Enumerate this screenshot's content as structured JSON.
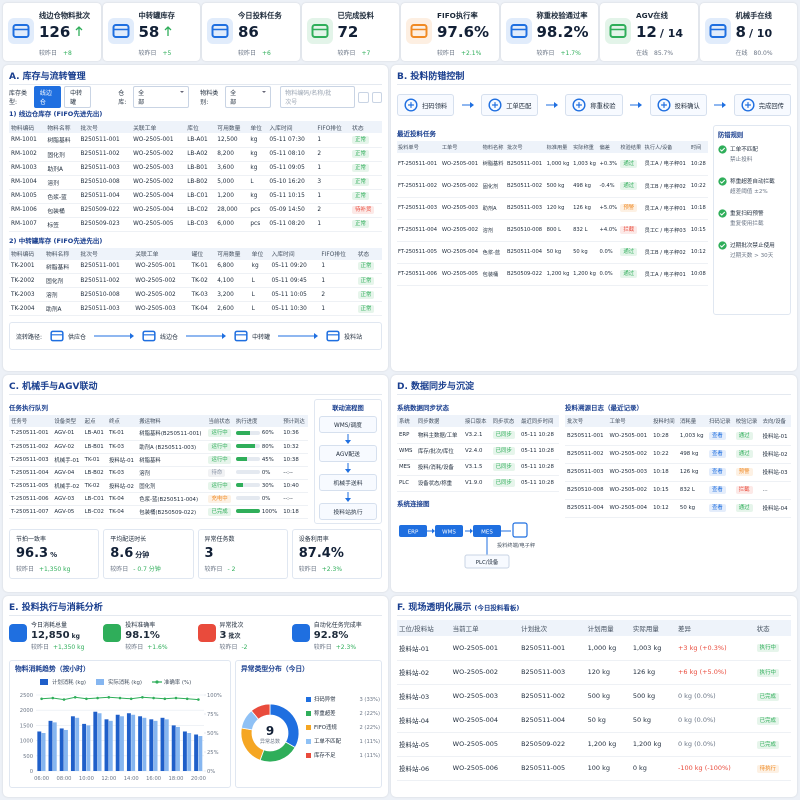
{
  "kpis": [
    {
      "title": "线边仓物料批次",
      "value": "126",
      "sub_label": "较昨日",
      "sub_value": "+8",
      "icon_color": "#1f6fe0",
      "arrow_color": "#2fae5a",
      "sub_color": "#2fae5a"
    },
    {
      "title": "中转罐库存",
      "value": "58",
      "sub_label": "较昨日",
      "sub_value": "+5",
      "icon_color": "#1f6fe0",
      "arrow_color": "#2fae5a",
      "sub_color": "#2fae5a"
    },
    {
      "title": "今日投料任务",
      "value": "86",
      "sub_label": "较昨日",
      "sub_value": "+6",
      "icon_color": "#1f6fe0",
      "sub_color": "#2fae5a"
    },
    {
      "title": "已完成投料",
      "value": "72",
      "sub_label": "较昨日",
      "sub_value": "+7",
      "icon_color": "#2fae5a",
      "sub_color": "#2fae5a"
    },
    {
      "title": "FIFO执行率",
      "value": "97.6%",
      "sub_label": "较昨日",
      "sub_value": "+2.1%",
      "icon_color": "#f08a24",
      "sub_color": "#2fae5a"
    },
    {
      "title": "称重校验通过率",
      "value": "98.2%",
      "sub_label": "较昨日",
      "sub_value": "+1.7%",
      "icon_color": "#1f6fe0",
      "sub_color": "#2fae5a"
    },
    {
      "title": "AGV在线",
      "value": "12",
      "total": "/ 14",
      "sub_label": "在线",
      "sub_value": "85.7%",
      "icon_color": "#2fae5a",
      "sub_color": "#6b7686"
    },
    {
      "title": "机械手在线",
      "value": "8",
      "total": "/ 10",
      "sub_label": "在线",
      "sub_value": "80.0%",
      "icon_color": "#1f6fe0",
      "sub_color": "#6b7686"
    }
  ],
  "section_a": {
    "title": "A. 库存与流转管理",
    "filters": {
      "type_label": "库存类型:",
      "type_options": [
        "线边仓",
        "中转罐"
      ],
      "warehouse_label": "仓库:",
      "warehouse_value": "全部",
      "category_label": "物料类别:",
      "category_value": "全部",
      "search_placeholder": "物料编码/名称/批次号"
    },
    "line_side": {
      "title": "1) 线边仓库存 (FIFO先进先出)",
      "headers": [
        "物料编码",
        "物料名称",
        "批次号",
        "关联工单",
        "库位",
        "可用数量",
        "单位",
        "入库时间",
        "FIFO排位",
        "状态"
      ],
      "rows": [
        [
          "RM-1001",
          "树脂基料",
          "B250511-001",
          "WO-2505-001",
          "LB-A01",
          "12,500",
          "kg",
          "05-11 07:30",
          "1",
          {
            "text": "正常",
            "color": "#2fae5a"
          }
        ],
        [
          "RM-1002",
          "固化剂",
          "B250511-002",
          "WO-2505-002",
          "LB-A02",
          "8,200",
          "kg",
          "05-11 08:10",
          "2",
          {
            "text": "正常",
            "color": "#2fae5a"
          }
        ],
        [
          "RM-1003",
          "助剂A",
          "B250511-003",
          "WO-2505-003",
          "LB-B01",
          "3,600",
          "kg",
          "05-11 09:05",
          "1",
          {
            "text": "正常",
            "color": "#2fae5a"
          }
        ],
        [
          "RM-1004",
          "溶剂",
          "B250510-008",
          "WO-2505-002",
          "LB-B02",
          "5,000",
          "L",
          "05-10 16:20",
          "3",
          {
            "text": "正常",
            "color": "#2fae5a"
          }
        ],
        [
          "RM-1005",
          "色浆-蓝",
          "B250511-004",
          "WO-2505-004",
          "LB-C01",
          "1,200",
          "kg",
          "05-11 10:15",
          "1",
          {
            "text": "正常",
            "color": "#2fae5a"
          }
        ],
        [
          "RM-1006",
          "包装桶",
          "B250509-022",
          "WO-2505-004",
          "LB-C02",
          "28,000",
          "pcs",
          "05-09 14:50",
          "2",
          {
            "text": "待补货",
            "color": "#e94b3c"
          }
        ],
        [
          "RM-1007",
          "标签",
          "B250509-023",
          "WO-2505-005",
          "LB-C03",
          "6,000",
          "pcs",
          "05-11 08:20",
          "1",
          {
            "text": "正常",
            "color": "#2fae5a"
          }
        ]
      ]
    },
    "tank": {
      "title": "2) 中转罐库存 (FIFO先进先出)",
      "headers": [
        "物料编码",
        "物料名称",
        "批次号",
        "关联工单",
        "罐位",
        "可用数量",
        "单位",
        "入库时间",
        "FIFO排位",
        "状态"
      ],
      "rows": [
        [
          "TK-2001",
          "树脂基料",
          "B250511-001",
          "WO-2505-001",
          "TK-01",
          "6,800",
          "kg",
          "05-11 09:20",
          "1",
          {
            "text": "正常",
            "color": "#2fae5a"
          }
        ],
        [
          "TK-2002",
          "固化剂",
          "B250511-002",
          "WO-2505-002",
          "TK-02",
          "4,100",
          "L",
          "05-11 09:45",
          "1",
          {
            "text": "正常",
            "color": "#2fae5a"
          }
        ],
        [
          "TK-2003",
          "溶剂",
          "B250510-008",
          "WO-2505-002",
          "TK-03",
          "3,200",
          "L",
          "05-11 10:05",
          "2",
          {
            "text": "正常",
            "color": "#2fae5a"
          }
        ],
        [
          "TK-2004",
          "助剂A",
          "B250511-003",
          "WO-2505-003",
          "TK-04",
          "2,600",
          "L",
          "05-11 10:30",
          "1",
          {
            "text": "正常",
            "color": "#2fae5a"
          }
        ]
      ]
    },
    "flow": {
      "label": "流转路径:",
      "nodes": [
        "供应仓",
        "线边仓",
        "中转罐",
        "投料站"
      ]
    }
  },
  "section_b": {
    "title": "B. 投料防错控制",
    "steps": [
      "扫码领料",
      "工单匹配",
      "称重校验",
      "投料确认",
      "完成回传"
    ],
    "tasks": {
      "title": "最近投料任务",
      "headers": [
        "投料单号",
        "工单号",
        "物料名称",
        "批次号",
        "标准用量",
        "实际称重",
        "偏差",
        "校验结果",
        "执行人/设备",
        "时间"
      ],
      "rows": [
        [
          "FT-250511-001",
          "WO-2505-001",
          "树脂基料",
          "B250511-001",
          "1,000 kg",
          "1,003 kg",
          "+0.3%",
          {
            "text": "通过",
            "color": "#2fae5a"
          },
          "员工A / 电子秤01",
          "10:28"
        ],
        [
          "FT-250511-002",
          "WO-2505-002",
          "固化剂",
          "B250511-002",
          "500 kg",
          "498 kg",
          "-0.4%",
          {
            "text": "通过",
            "color": "#2fae5a"
          },
          "员工B / 电子秤02",
          "10:22"
        ],
        [
          "FT-250511-003",
          "WO-2505-003",
          "助剂A",
          "B250511-003",
          "120 kg",
          "126 kg",
          "+5.0%",
          {
            "text": "预警",
            "color": "#f08a24"
          },
          "员工A / 电子秤01",
          "10:18"
        ],
        [
          "FT-250511-004",
          "WO-2505-002",
          "溶剂",
          "B250510-008",
          "800 L",
          "832 L",
          "+4.0%",
          {
            "text": "拦截",
            "color": "#e94b3c"
          },
          "员工C / 电子秤03",
          "10:15"
        ],
        [
          "FT-250511-005",
          "WO-2505-004",
          "色浆-蓝",
          "B250511-004",
          "50 kg",
          "50 kg",
          "0.0%",
          {
            "text": "通过",
            "color": "#2fae5a"
          },
          "员工B / 电子秤02",
          "10:12"
        ],
        [
          "FT-250511-006",
          "WO-2505-005",
          "包装桶",
          "B250509-022",
          "1,200 kg",
          "1,200 kg",
          "0.0%",
          {
            "text": "通过",
            "color": "#2fae5a"
          },
          "员工A / 电子秤01",
          "10:08"
        ]
      ]
    },
    "rules": {
      "title": "防错规则",
      "items": [
        {
          "title": "工单不匹配",
          "desc": "禁止投料"
        },
        {
          "title": "称重超差自动拦截",
          "desc": "超差阈值 ±2%"
        },
        {
          "title": "重复扫码预警",
          "desc": "重复使用拦截"
        },
        {
          "title": "过期批次禁止使用",
          "desc": "过期天数 > 30天"
        }
      ]
    }
  },
  "section_c": {
    "title": "C. 机械手与AGV联动",
    "queue": {
      "title": "任务执行队列",
      "headers": [
        "任务号",
        "设备类型",
        "起点",
        "终点",
        "搬运物料",
        "当前状态",
        "执行进度",
        "预计到达"
      ],
      "rows": [
        [
          "T-250511-001",
          "AGV-01",
          "LB-A01",
          "TK-01",
          "树脂基料(B250511-001)",
          {
            "text": "运行中",
            "color": "#2fae5a"
          },
          "60%",
          "10:36"
        ],
        [
          "T-250511-002",
          "AGV-02",
          "LB-B01",
          "TK-03",
          "助剂A (B250511-003)",
          {
            "text": "运行中",
            "color": "#2fae5a"
          },
          "80%",
          "10:32"
        ],
        [
          "T-250511-003",
          "机械手-01",
          "TK-01",
          "投料站-01",
          "树脂基料",
          {
            "text": "运行中",
            "color": "#2fae5a"
          },
          "45%",
          "10:38"
        ],
        [
          "T-250511-004",
          "AGV-04",
          "LB-B02",
          "TK-03",
          "溶剂",
          {
            "text": "待命",
            "color": "#8a94a6"
          },
          "0%",
          "--:--"
        ],
        [
          "T-250511-005",
          "机械手-02",
          "TK-02",
          "投料站-02",
          "固化剂",
          {
            "text": "运行中",
            "color": "#2fae5a"
          },
          "30%",
          "10:40"
        ],
        [
          "T-250511-006",
          "AGV-03",
          "LB-C01",
          "TK-04",
          "色浆-蓝(B250511-004)",
          {
            "text": "充电中",
            "color": "#f08a24"
          },
          "0%",
          "--:--"
        ],
        [
          "T-250511-007",
          "AGV-05",
          "LB-C02",
          "TK-04",
          "包装桶(B250509-022)",
          {
            "text": "已完成",
            "color": "#2fae5a"
          },
          "100%",
          "10:18"
        ]
      ]
    },
    "flow": {
      "title": "联动流程图",
      "nodes": [
        "WMS/调度",
        "AGV配送",
        "机械手送料",
        "投料站执行"
      ]
    },
    "stats": [
      {
        "label": "节拍一致率",
        "value": "96.3",
        "unit": "%",
        "sub_label": "较昨日",
        "sub_value": "+1,350 kg"
      },
      {
        "label": "平均配送时长",
        "value": "8.6",
        "unit": "分钟",
        "sub_label": "较昨日",
        "sub_value": "- 0.7 分钟"
      },
      {
        "label": "异常任务数",
        "value": "3",
        "sub_label": "较昨日",
        "sub_value": "- 2"
      },
      {
        "label": "设备利用率",
        "value": "87.4%",
        "sub_label": "较昨日",
        "sub_value": "+2.3%"
      }
    ]
  },
  "section_d": {
    "title": "D. 数据同步与沉淀",
    "sync": {
      "title": "系统数据同步状态",
      "headers": [
        "系统",
        "同步数据",
        "接口版本",
        "同步状态",
        "最近同步时间"
      ],
      "rows": [
        [
          "ERP",
          "物料主数据/工单",
          "V3.2.1",
          {
            "text": "已同步",
            "color": "#2fae5a"
          },
          "05-11 10:28"
        ],
        [
          "WMS",
          "库存/批次/库位",
          "V2.4.0",
          {
            "text": "已同步",
            "color": "#2fae5a"
          },
          "05-11 10:28"
        ],
        [
          "MES",
          "投料/消耗/设备",
          "V3.1.5",
          {
            "text": "已同步",
            "color": "#2fae5a"
          },
          "05-11 10:28"
        ],
        [
          "PLC",
          "设备状态/称重",
          "V1.9.0",
          {
            "text": "已同步",
            "color": "#2fae5a"
          },
          "05-11 10:28"
        ]
      ]
    },
    "trace": {
      "title": "投料溯源日志（最近记录）",
      "headers": [
        "批次号",
        "工单号",
        "投料时间",
        "消耗量",
        "扫码记录",
        "校验记录",
        "去向/设备"
      ],
      "rows": [
        [
          "B250511-001",
          "WO-2505-001",
          "10:28",
          "1,003 kg",
          {
            "text": "查看",
            "color": "#1f6fe0"
          },
          {
            "text": "通过",
            "color": "#2fae5a"
          },
          "投料站-01"
        ],
        [
          "B250511-002",
          "WO-2505-002",
          "10:22",
          "498 kg",
          {
            "text": "查看",
            "color": "#1f6fe0"
          },
          {
            "text": "通过",
            "color": "#2fae5a"
          },
          "投料站-02"
        ],
        [
          "B250511-003",
          "WO-2505-003",
          "10:18",
          "126 kg",
          {
            "text": "查看",
            "color": "#1f6fe0"
          },
          {
            "text": "预警",
            "color": "#f08a24"
          },
          "投料站-03"
        ],
        [
          "B250510-008",
          "WO-2505-002",
          "10:15",
          "832 L",
          {
            "text": "查看",
            "color": "#1f6fe0"
          },
          {
            "text": "拦截",
            "color": "#e94b3c"
          },
          "..."
        ],
        [
          "B250511-004",
          "WO-2505-004",
          "10:12",
          "50 kg",
          {
            "text": "查看",
            "color": "#1f6fe0"
          },
          {
            "text": "通过",
            "color": "#2fae5a"
          },
          "投料站-04"
        ]
      ]
    },
    "topology": {
      "title": "系统连接图",
      "nodes": [
        "ERP",
        "WMS",
        "MES",
        "投料终端/电子秤",
        "PLC/设备"
      ]
    }
  },
  "section_e": {
    "title": "E. 投料执行与消耗分析",
    "kpis": [
      {
        "label": "今日消耗总量",
        "value": "12,850",
        "unit": "kg",
        "sub_label": "较昨日",
        "sub_value": "+1,350 kg",
        "color": "#1f6fe0"
      },
      {
        "label": "投料准确率",
        "value": "98.1%",
        "sub_label": "较昨日",
        "sub_value": "+1.6%",
        "color": "#2fae5a"
      },
      {
        "label": "异常批次",
        "value": "3",
        "unit": "批次",
        "sub_label": "较昨日",
        "sub_value": "-2",
        "color": "#e94b3c"
      },
      {
        "label": "自动化任务完成率",
        "value": "92.8%",
        "sub_label": "较昨日",
        "sub_value": "+2.3%",
        "color": "#1f6fe0"
      }
    ]
  },
  "chart_data": [
    {
      "type": "bar",
      "title": "物料消耗趋势（按小时）",
      "categories": [
        "06:00",
        null,
        "08:00",
        null,
        "10:00",
        null,
        "12:00",
        null,
        "14:00",
        null,
        "16:00",
        null,
        "18:00",
        null,
        "20:00"
      ],
      "series": [
        {
          "name": "计划消耗 (kg)",
          "color": "#1f5fc9",
          "values": [
            1300,
            1650,
            1400,
            1800,
            1550,
            1950,
            1700,
            1850,
            1900,
            1800,
            1700,
            1750,
            1500,
            1300,
            1200
          ]
        },
        {
          "name": "实际消耗 (kg)",
          "color": "#86b6f0",
          "values": [
            1250,
            1600,
            1350,
            1750,
            1500,
            1900,
            1650,
            1800,
            1850,
            1750,
            1650,
            1700,
            1450,
            1250,
            1150
          ]
        },
        {
          "name": "准确率 (%)",
          "color": "#2fae5a",
          "axis": "y2",
          "values": [
            95,
            96,
            94,
            97,
            95,
            96,
            97,
            96,
            95,
            97,
            96,
            95,
            96,
            95,
            94
          ]
        }
      ],
      "ylim": [
        0,
        2500
      ],
      "yticks": [
        0,
        500,
        1000,
        1500,
        2000,
        2500
      ],
      "y2lim": [
        0,
        100
      ],
      "y2ticks": [
        {
          "value": 0,
          "label": "0%"
        },
        {
          "value": 25,
          "label": "25%"
        },
        {
          "value": 50,
          "label": "50%"
        },
        {
          "value": 75,
          "label": "75%"
        },
        {
          "value": 100,
          "label": "100%"
        }
      ],
      "grid": true
    },
    {
      "type": "pie",
      "title": "异常类型分布（今日）",
      "donut": true,
      "center_value": "9",
      "center_label": "异常总数",
      "categories": [
        "扫码异常",
        "称重超差",
        "FIFO违规",
        "工单不匹配",
        "库存不足"
      ],
      "values": [
        3,
        2,
        2,
        1,
        1
      ],
      "value_labels": [
        "3 (33%)",
        "2 (22%)",
        "2 (22%)",
        "1 (11%)",
        "1 (11%)"
      ],
      "colors": [
        "#1f6fe0",
        "#2fae5a",
        "#f5a623",
        "#8fc1f5",
        "#e94b3c"
      ]
    }
  ],
  "section_f": {
    "title": "F. 现场透明化展示",
    "subtitle": "(今日投料看板)",
    "board": {
      "headers": [
        "工位/投料站",
        "当前工单",
        "计划批次",
        "计划用量",
        "实际用量",
        "差异",
        "状态"
      ],
      "rows": [
        [
          "投料站-01",
          "WO-2505-001",
          "B250511-001",
          "1,000 kg",
          "1,003 kg",
          {
            "text": "+3 kg (+0.3%)",
            "color": "#e94b3c"
          },
          {
            "text": "执行中",
            "color": "#2fae5a"
          }
        ],
        [
          "投料站-02",
          "WO-2505-002",
          "B250511-003",
          "120 kg",
          "126 kg",
          {
            "text": "+6 kg (+5.0%)",
            "color": "#e94b3c"
          },
          {
            "text": "执行中",
            "color": "#2fae5a"
          }
        ],
        [
          "投料站-03",
          "WO-2505-003",
          "B250511-002",
          "500 kg",
          "500 kg",
          {
            "text": "0 kg (0.0%)",
            "color": "#6b7686"
          },
          {
            "text": "已完成",
            "color": "#2fae5a"
          }
        ],
        [
          "投料站-04",
          "WO-2505-004",
          "B250511-004",
          "50 kg",
          "50 kg",
          {
            "text": "0 kg (0.0%)",
            "color": "#6b7686"
          },
          {
            "text": "已完成",
            "color": "#2fae5a"
          }
        ],
        [
          "投料站-05",
          "WO-2505-005",
          "B250509-022",
          "1,200 kg",
          "1,200 kg",
          {
            "text": "0 kg (0.0%)",
            "color": "#6b7686"
          },
          {
            "text": "已完成",
            "color": "#2fae5a"
          }
        ],
        [
          "投料站-06",
          "WO-2505-006",
          "B250511-005",
          "100 kg",
          "0 kg",
          {
            "text": "-100 kg (-100%)",
            "color": "#e94b3c"
          },
          {
            "text": "待执行",
            "color": "#f08a24"
          }
        ]
      ]
    }
  }
}
